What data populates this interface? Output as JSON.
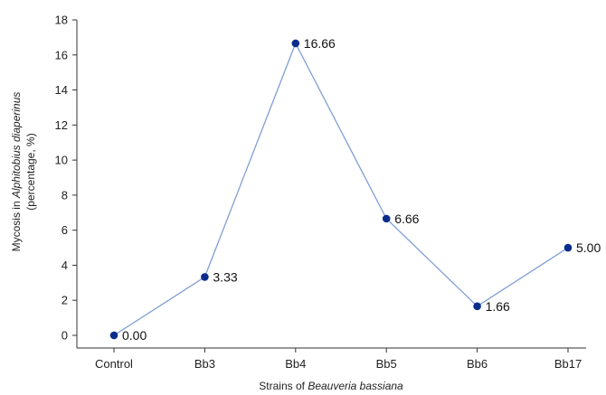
{
  "chart_data": {
    "type": "line",
    "categories": [
      "Control",
      "Bb3",
      "Bb4",
      "Bb5",
      "Bb6",
      "Bb17"
    ],
    "values": [
      0.0,
      3.33,
      16.66,
      6.66,
      1.66,
      5.0
    ],
    "data_labels": [
      "0.00",
      "3.33",
      "16.66",
      "6.66",
      "1.66",
      "5.00"
    ],
    "ylim": [
      0,
      18
    ],
    "yticks": [
      0,
      2,
      4,
      6,
      8,
      10,
      12,
      14,
      16,
      18
    ],
    "ytick_labels": [
      "0",
      "2",
      "4",
      "6",
      "8",
      "10",
      "12",
      "14",
      "16",
      "18"
    ],
    "xlabel": {
      "prefix": "Strains of ",
      "italic": "Beauveria bassiana"
    },
    "ylabel": {
      "line1_prefix": "Mycosis in ",
      "line1_italic": "Alphitobius diaperinus",
      "line2": "(percentage, %)"
    },
    "line_color": "#7f9fd4",
    "marker_color": "#0a2d8c",
    "axis_color": "#333333",
    "grid": false
  }
}
